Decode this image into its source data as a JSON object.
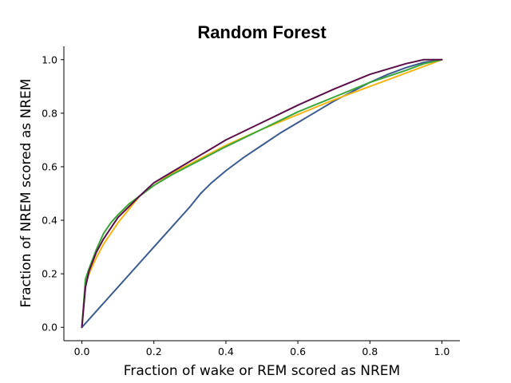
{
  "chart_data": {
    "type": "line",
    "title": "Random Forest",
    "xlabel": "Fraction of wake or REM scored as NREM",
    "ylabel": "Fraction of NREM scored as NREM",
    "xlim": [
      -0.05,
      1.05
    ],
    "ylim": [
      -0.05,
      1.05
    ],
    "xticks": [
      "0.0",
      "0.2",
      "0.4",
      "0.6",
      "0.8",
      "1.0"
    ],
    "yticks": [
      "0.0",
      "0.2",
      "0.4",
      "0.6",
      "0.8",
      "1.0"
    ],
    "grid": false,
    "legend": false,
    "series": [
      {
        "color": "#3b5b8f",
        "x": [
          0,
          0.05,
          0.1,
          0.15,
          0.2,
          0.25,
          0.3,
          0.33,
          0.36,
          0.4,
          0.45,
          0.5,
          0.55,
          0.6,
          0.65,
          0.7,
          0.75,
          0.8,
          0.85,
          0.9,
          0.95,
          1.0
        ],
        "y": [
          0,
          0.075,
          0.15,
          0.225,
          0.3,
          0.375,
          0.45,
          0.5,
          0.54,
          0.585,
          0.635,
          0.68,
          0.725,
          0.765,
          0.805,
          0.845,
          0.88,
          0.915,
          0.945,
          0.97,
          0.99,
          1.0
        ]
      },
      {
        "color": "#f5b314",
        "x": [
          0,
          0.01,
          0.02,
          0.04,
          0.06,
          0.08,
          0.1,
          0.13,
          0.16,
          0.2,
          0.25,
          0.3,
          0.35,
          0.4,
          0.5,
          0.6,
          0.7,
          0.8,
          0.9,
          1.0
        ],
        "y": [
          0,
          0.16,
          0.2,
          0.26,
          0.31,
          0.35,
          0.39,
          0.44,
          0.49,
          0.53,
          0.575,
          0.61,
          0.645,
          0.68,
          0.74,
          0.795,
          0.85,
          0.9,
          0.95,
          1.0
        ]
      },
      {
        "color": "#3aa63a",
        "x": [
          0,
          0.01,
          0.02,
          0.04,
          0.06,
          0.08,
          0.1,
          0.13,
          0.16,
          0.2,
          0.25,
          0.3,
          0.35,
          0.4,
          0.5,
          0.6,
          0.7,
          0.8,
          0.9,
          0.95,
          1.0
        ],
        "y": [
          0,
          0.18,
          0.22,
          0.29,
          0.35,
          0.39,
          0.42,
          0.46,
          0.49,
          0.53,
          0.57,
          0.605,
          0.64,
          0.675,
          0.74,
          0.805,
          0.86,
          0.915,
          0.96,
          0.985,
          1.0
        ]
      },
      {
        "color": "#5a0f4a",
        "x": [
          0,
          0.01,
          0.02,
          0.04,
          0.06,
          0.08,
          0.1,
          0.13,
          0.16,
          0.2,
          0.25,
          0.3,
          0.35,
          0.4,
          0.5,
          0.6,
          0.7,
          0.8,
          0.9,
          0.95,
          1.0
        ],
        "y": [
          0,
          0.15,
          0.21,
          0.28,
          0.33,
          0.37,
          0.41,
          0.45,
          0.49,
          0.54,
          0.58,
          0.62,
          0.66,
          0.7,
          0.765,
          0.83,
          0.89,
          0.945,
          0.985,
          1.0,
          1.0
        ]
      }
    ]
  }
}
